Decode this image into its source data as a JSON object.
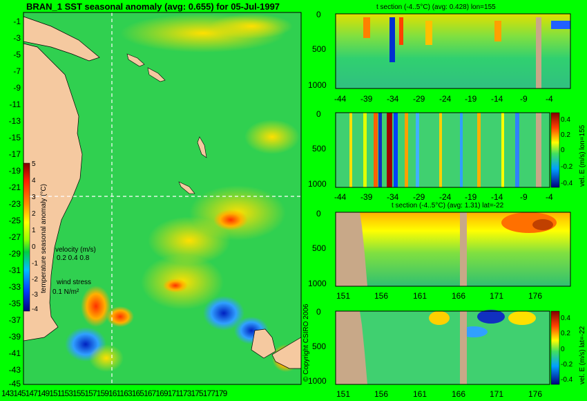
{
  "main_map": {
    "title": "BRAN_1  SST seasonal anomaly (avg: 0.655) for 05-Jul-1997",
    "y_ticks": [
      "-1",
      "-3",
      "-5",
      "-7",
      "-9",
      "-11",
      "-13",
      "-15",
      "-17",
      "-19",
      "-21",
      "-23",
      "-25",
      "-27",
      "-29",
      "-31",
      "-33",
      "-35",
      "-37",
      "-39",
      "-41",
      "-43",
      "-45"
    ],
    "x_ticks_text": "143145147149151153155157159161163165167169171173175177179",
    "colorbar_label": "temperature seasonal anomaly (°C)",
    "colorbar_ticks": [
      "5",
      "4",
      "3",
      "2",
      "1",
      "0",
      "-1",
      "-2",
      "-3",
      "-4"
    ],
    "velocity_legend_title": "velocity (m/s)",
    "velocity_legend_values": "0.2 0.4 0.8",
    "wind_label": "wind stress",
    "wind_value": "0.1 N/m²",
    "copyright": "© Copyright CSIRO 2006"
  },
  "panels": [
    {
      "title": "t section (-4..5°C) (avg: 0.428) lon=155",
      "y_ticks": [
        "0",
        "500",
        "1000"
      ],
      "x_ticks": [
        "-44",
        "-39",
        "-34",
        "-29",
        "-24",
        "-19",
        "-14",
        "-9",
        "-4"
      ]
    },
    {
      "title": "",
      "y_ticks": [
        "0",
        "500",
        "1000"
      ],
      "x_ticks": [
        "-44",
        "-39",
        "-34",
        "-29",
        "-24",
        "-19",
        "-14",
        "-9",
        "-4"
      ],
      "colorbar_label": "vel. E (m/s) lon=155",
      "colorbar_ticks": [
        "0.4",
        "0.2",
        "0",
        "-0.2",
        "-0.4"
      ]
    },
    {
      "title": "t section (-4..5°C) (avg: 1.31) lat=-22",
      "y_ticks": [
        "0",
        "500",
        "1000"
      ],
      "x_ticks": [
        "151",
        "156",
        "161",
        "166",
        "171",
        "176"
      ]
    },
    {
      "title": "",
      "y_ticks": [
        "0",
        "500",
        "1000"
      ],
      "x_ticks": [
        "151",
        "156",
        "161",
        "166",
        "171",
        "176"
      ],
      "colorbar_label": "vel. E (m/s) lat=-22",
      "colorbar_ticks": [
        "0.4",
        "0.2",
        "0",
        "-0.2",
        "-0.4"
      ]
    }
  ],
  "chart_data": [
    {
      "type": "heatmap",
      "title": "BRAN_1  SST seasonal anomaly (avg: 0.655) for 05-Jul-1997",
      "xlim": [
        142,
        180
      ],
      "ylim": [
        -45,
        0
      ],
      "zlim": [
        -4,
        5
      ],
      "zlabel": "temperature seasonal anomaly (°C)"
    },
    {
      "type": "heatmap",
      "title": "t section (-4..5°C) (avg: 0.428) lon=155",
      "xlim": [
        -45,
        -1
      ],
      "ylim": [
        1050,
        0
      ]
    },
    {
      "type": "heatmap",
      "xlim": [
        -45,
        -1
      ],
      "ylim": [
        1050,
        0
      ],
      "zlim": [
        -0.4,
        0.4
      ],
      "zlabel": "vel. E (m/s) lon=155"
    },
    {
      "type": "heatmap",
      "title": "t section (-4..5°C) (avg: 1.31) lat=-22",
      "xlim": [
        150,
        180
      ],
      "ylim": [
        1050,
        0
      ]
    },
    {
      "type": "heatmap",
      "xlim": [
        150,
        180
      ],
      "ylim": [
        1050,
        0
      ],
      "zlim": [
        -0.4,
        0.4
      ],
      "zlabel": "vel. E (m/s) lat=-22"
    }
  ]
}
